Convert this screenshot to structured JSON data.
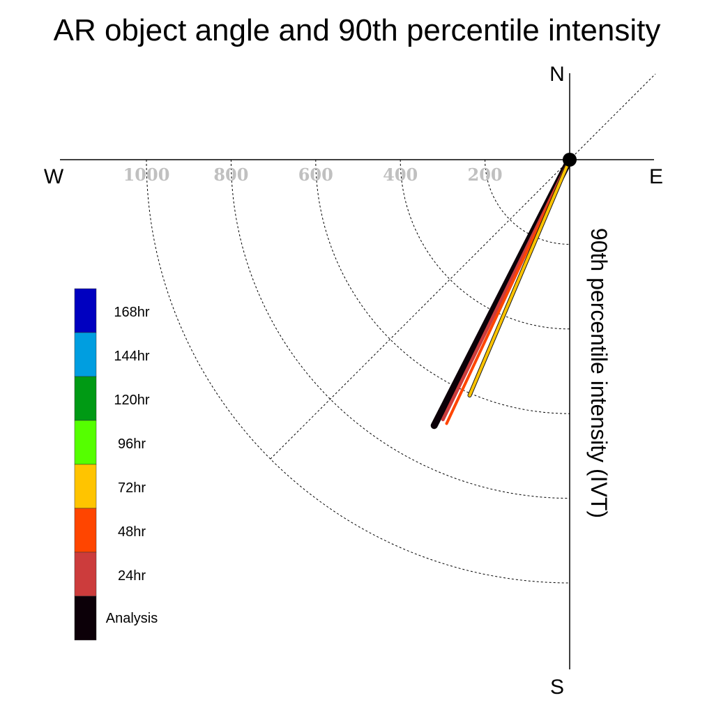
{
  "chart_data": {
    "type": "polar-vector",
    "title": "AR object angle and 90th percentile intensity",
    "ylabel": "90th percentile intensity (IVT)",
    "compass": {
      "north": "N",
      "south": "S",
      "east": "E",
      "west": "W"
    },
    "radial_ticks": [
      "200",
      "400",
      "600",
      "800",
      "1000"
    ],
    "radial_tick_values": [
      200,
      400,
      600,
      800,
      1000
    ],
    "rlim": [
      0,
      1000
    ],
    "grid": true,
    "legend_position": "lower-left",
    "legend": [
      {
        "label": "168hr",
        "color": "#0000c0"
      },
      {
        "label": "144hr",
        "color": "#009ee0"
      },
      {
        "label": "120hr",
        "color": "#009a14"
      },
      {
        "label": "96hr",
        "color": "#55ff00"
      },
      {
        "label": "72hr",
        "color": "#ffc400"
      },
      {
        "label": "48hr",
        "color": "#ff4500"
      },
      {
        "label": "24hr",
        "color": "#cc3c3c"
      },
      {
        "label": "Analysis",
        "color": "#0c0008"
      }
    ],
    "series": [
      {
        "name": "Analysis",
        "color": "#0c0008",
        "intensity": 705,
        "angle_deg": 207
      },
      {
        "name": "24hr",
        "color": "#cc3c3c",
        "intensity": 683,
        "angle_deg": 206
      },
      {
        "name": "48hr",
        "color": "#ff4500",
        "intensity": 688,
        "angle_deg": 205
      },
      {
        "name": "72hr",
        "color": "#ffc400",
        "intensity": 605,
        "angle_deg": 203
      }
    ]
  }
}
